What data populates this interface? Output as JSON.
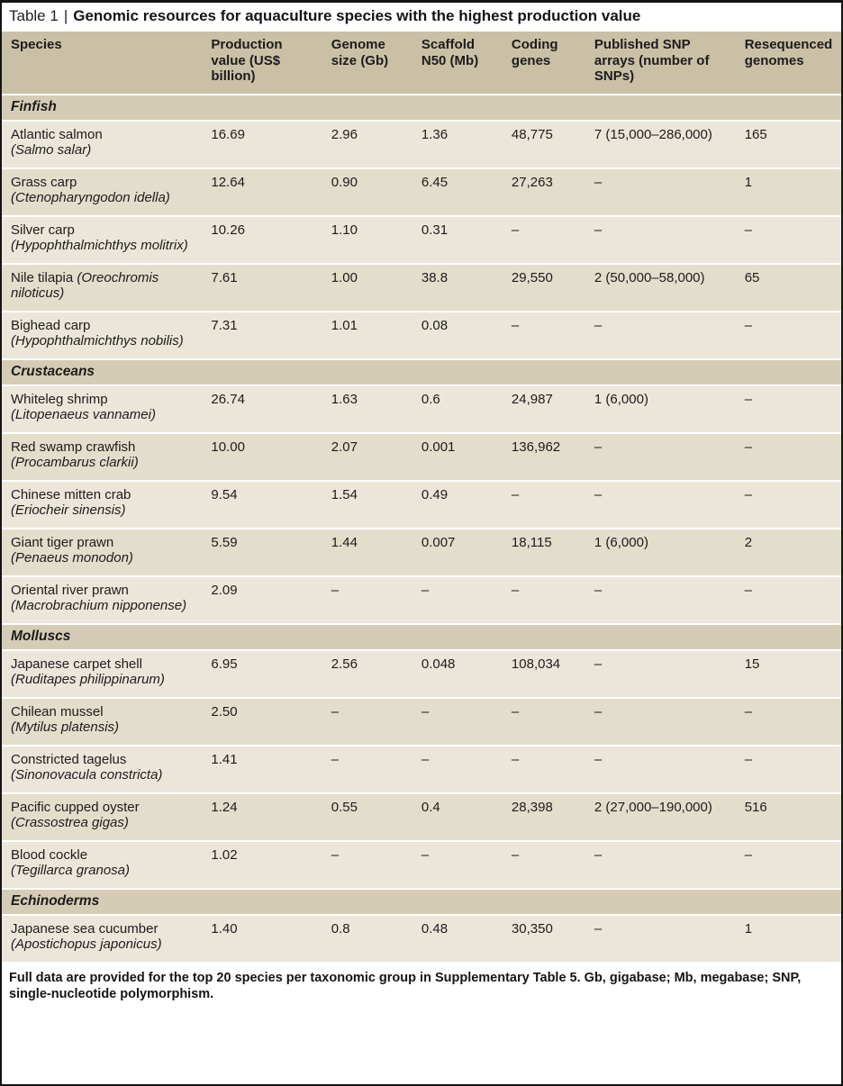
{
  "title": {
    "prefix": "Table 1",
    "divider": "|",
    "text": "Genomic resources for aquaculture species with the highest production value"
  },
  "table": {
    "columns": [
      "Species",
      "Production value (US$ billion)",
      "Genome size (Gb)",
      "Scaffold N50 (Mb)",
      "Coding genes",
      "Published SNP arrays (number of SNPs)",
      "Resequenced genomes"
    ],
    "sections": [
      {
        "name": "Finfish",
        "rows": [
          {
            "common": "Atlantic salmon",
            "scientific": "Salmo salar",
            "break": true,
            "values": [
              "16.69",
              "2.96",
              "1.36",
              "48,775",
              "7 (15,000–286,000)",
              "165"
            ]
          },
          {
            "common": "Grass carp",
            "scientific": "Ctenopharyngodon idella",
            "break": true,
            "values": [
              "12.64",
              "0.90",
              "6.45",
              "27,263",
              "–",
              "1"
            ]
          },
          {
            "common": "Silver carp",
            "scientific": "Hypophthalmichthys molitrix",
            "break": true,
            "values": [
              "10.26",
              "1.10",
              "0.31",
              "–",
              "–",
              "–"
            ]
          },
          {
            "common": "Nile tilapia",
            "scientific": "Oreochromis niloticus",
            "break": false,
            "values": [
              "7.61",
              "1.00",
              "38.8",
              "29,550",
              "2 (50,000–58,000)",
              "65"
            ]
          },
          {
            "common": "Bighead carp",
            "scientific": "Hypophthalmichthys nobilis",
            "break": true,
            "values": [
              "7.31",
              "1.01",
              "0.08",
              "–",
              "–",
              "–"
            ]
          }
        ]
      },
      {
        "name": "Crustaceans",
        "rows": [
          {
            "common": "Whiteleg shrimp",
            "scientific": "Litopenaeus vannamei",
            "break": true,
            "values": [
              "26.74",
              "1.63",
              "0.6",
              "24,987",
              "1 (6,000)",
              "–"
            ]
          },
          {
            "common": "Red swamp crawfish",
            "scientific": "Procambarus clarkii",
            "break": true,
            "values": [
              "10.00",
              "2.07",
              "0.001",
              "136,962",
              "–",
              "–"
            ]
          },
          {
            "common": "Chinese mitten crab",
            "scientific": "Eriocheir sinensis",
            "break": true,
            "values": [
              "9.54",
              "1.54",
              "0.49",
              "–",
              "–",
              "–"
            ]
          },
          {
            "common": "Giant tiger prawn",
            "scientific": "Penaeus monodon",
            "break": true,
            "values": [
              "5.59",
              "1.44",
              "0.007",
              "18,115",
              "1 (6,000)",
              "2"
            ]
          },
          {
            "common": "Oriental river prawn",
            "scientific": "Macrobrachium nipponense",
            "break": true,
            "values": [
              "2.09",
              "–",
              "–",
              "–",
              "–",
              "–"
            ]
          }
        ]
      },
      {
        "name": "Molluscs",
        "rows": [
          {
            "common": "Japanese carpet shell",
            "scientific": "Ruditapes philippinarum",
            "break": true,
            "values": [
              "6.95",
              "2.56",
              "0.048",
              "108,034",
              "–",
              "15"
            ]
          },
          {
            "common": "Chilean mussel",
            "scientific": "Mytilus platensis",
            "break": true,
            "values": [
              "2.50",
              "–",
              "–",
              "–",
              "–",
              "–"
            ]
          },
          {
            "common": "Constricted tagelus",
            "scientific": "Sinonovacula constricta",
            "break": true,
            "values": [
              "1.41",
              "–",
              "–",
              "–",
              "–",
              "–"
            ]
          },
          {
            "common": "Pacific cupped oyster",
            "scientific": "Crassostrea gigas",
            "break": true,
            "values": [
              "1.24",
              "0.55",
              "0.4",
              "28,398",
              "2 (27,000–190,000)",
              "516"
            ]
          },
          {
            "common": "Blood cockle",
            "scientific": "Tegillarca granosa",
            "break": true,
            "values": [
              "1.02",
              "–",
              "–",
              "–",
              "–",
              "–"
            ]
          }
        ]
      },
      {
        "name": "Echinoderms",
        "rows": [
          {
            "common": "Japanese sea cucumber",
            "scientific": "Apostichopus japonicus",
            "break": true,
            "values": [
              "1.40",
              "0.8",
              "0.48",
              "30,350",
              "–",
              "1"
            ]
          }
        ]
      }
    ]
  },
  "footnote": "Full data are provided for the top 20 species per taxonomic group in Supplementary Table 5. Gb, gigabase; Mb, megabase; SNP, single-nucleotide polymorphism.",
  "colors": {
    "header_bg": "#c9c0a6",
    "section_bg": "#d5ccb5",
    "row_light_bg": "#ece6da",
    "row_dark_bg": "#e3ddcb",
    "row_separator": "#ffffff",
    "text": "#1c1c1c",
    "outer_border": "#141414"
  }
}
